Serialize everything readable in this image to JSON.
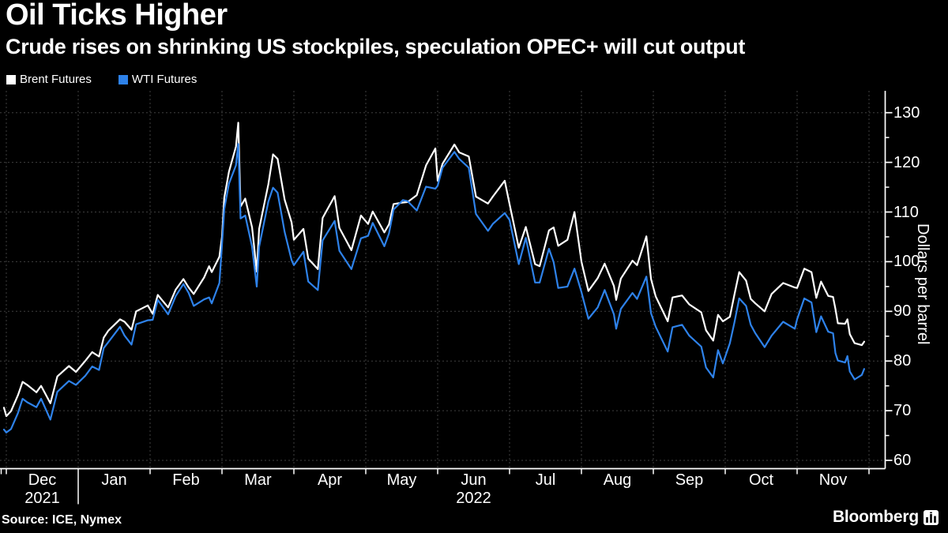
{
  "header": {
    "title": "Oil Ticks Higher",
    "subtitle": "Crude rises on shrinking US stockpiles, speculation OPEC+ will cut output"
  },
  "footer": {
    "source": "Source: ICE, Nymex",
    "brand": "Bloomberg",
    "brand_icon": "mini-bar-chart-icon"
  },
  "colors": {
    "background": "#000000",
    "text": "#ffffff",
    "gridline": "#3f3f3f",
    "axis": "#ffffff",
    "brent": "#ffffff",
    "wti": "#2e82ea"
  },
  "chart_data": {
    "type": "line",
    "title": "Oil Ticks Higher",
    "subtitle": "Crude rises on shrinking US stockpiles, speculation OPEC+ will cut output",
    "ylabel": "Dollars per barrel",
    "x_unit": "months since 2021-12-01 (fractional)",
    "grid": "dashed",
    "legend_position": "top-left",
    "x": [
      -0.033,
      0.0,
      0.065,
      0.161,
      0.226,
      0.29,
      0.419,
      0.484,
      0.613,
      0.71,
      0.871,
      0.968,
      1.097,
      1.194,
      1.29,
      1.355,
      1.419,
      1.581,
      1.645,
      1.742,
      1.806,
      1.968,
      2.036,
      2.107,
      2.25,
      2.357,
      2.464,
      2.536,
      2.607,
      2.75,
      2.821,
      2.857,
      2.964,
      3.0,
      3.032,
      3.097,
      3.194,
      3.226,
      3.258,
      3.323,
      3.419,
      3.484,
      3.516,
      3.645,
      3.71,
      3.774,
      3.871,
      3.968,
      4.0,
      4.133,
      4.2,
      4.333,
      4.4,
      4.567,
      4.633,
      4.8,
      4.933,
      5.032,
      5.097,
      5.258,
      5.323,
      5.387,
      5.516,
      5.581,
      5.71,
      5.839,
      5.968,
      6.0,
      6.067,
      6.233,
      6.3,
      6.433,
      6.533,
      6.7,
      6.767,
      6.933,
      7.0,
      7.129,
      7.226,
      7.355,
      7.419,
      7.548,
      7.613,
      7.677,
      7.806,
      7.903,
      8.0,
      8.097,
      8.226,
      8.323,
      8.452,
      8.484,
      8.548,
      8.71,
      8.774,
      8.903,
      8.968,
      9.033,
      9.2,
      9.267,
      9.4,
      9.5,
      9.667,
      9.733,
      9.833,
      9.9,
      9.967,
      10.065,
      10.129,
      10.194,
      10.29,
      10.355,
      10.419,
      10.548,
      10.645,
      10.806,
      10.968,
      11.0,
      11.1,
      11.2,
      11.267,
      11.333,
      11.433,
      11.5,
      11.533,
      11.567,
      11.667,
      11.7,
      11.733,
      11.8,
      11.9,
      11.933
    ],
    "series": [
      {
        "name": "Brent Futures",
        "color": "#ffffff",
        "values": [
          70.6,
          68.9,
          69.9,
          73.1,
          75.8,
          75.2,
          73.7,
          75.0,
          71.5,
          76.9,
          79.0,
          77.8,
          80.0,
          81.8,
          80.9,
          84.7,
          86.1,
          88.4,
          87.9,
          86.3,
          90.0,
          91.2,
          89.5,
          93.3,
          90.8,
          94.4,
          96.5,
          94.8,
          93.5,
          96.8,
          99.1,
          97.9,
          101.0,
          105.0,
          112.9,
          118.1,
          123.2,
          128.0,
          111.1,
          112.7,
          106.9,
          98.0,
          106.6,
          115.6,
          121.6,
          120.7,
          112.5,
          107.9,
          104.4,
          106.6,
          100.6,
          98.5,
          108.8,
          113.2,
          106.8,
          102.3,
          109.3,
          107.6,
          110.1,
          105.9,
          107.5,
          111.6,
          111.9,
          112.0,
          113.4,
          119.4,
          122.8,
          116.3,
          119.7,
          123.6,
          122.0,
          121.2,
          113.1,
          111.7,
          113.1,
          116.3,
          111.6,
          102.8,
          107.0,
          99.5,
          99.1,
          106.3,
          106.9,
          103.2,
          104.4,
          110.0,
          100.0,
          94.1,
          96.7,
          99.6,
          95.1,
          92.3,
          96.6,
          100.2,
          99.3,
          105.1,
          96.5,
          93.0,
          88.0,
          92.8,
          93.2,
          91.4,
          89.8,
          86.2,
          84.1,
          89.3,
          88.0,
          88.9,
          93.4,
          97.9,
          96.2,
          92.5,
          91.6,
          90.0,
          93.5,
          95.7,
          94.8,
          94.7,
          98.6,
          97.9,
          92.7,
          96.0,
          93.1,
          92.9,
          90.5,
          87.6,
          87.5,
          88.4,
          85.4,
          83.6,
          83.2,
          83.9
        ]
      },
      {
        "name": "WTI Futures",
        "color": "#2e82ea",
        "values": [
          66.2,
          65.6,
          66.3,
          69.5,
          72.4,
          71.7,
          70.7,
          72.4,
          68.2,
          73.8,
          76.0,
          75.2,
          77.0,
          78.9,
          78.2,
          82.6,
          83.8,
          86.9,
          85.1,
          83.3,
          87.4,
          88.2,
          88.3,
          92.3,
          89.4,
          93.1,
          95.5,
          93.7,
          91.1,
          92.4,
          92.8,
          91.6,
          95.7,
          103.4,
          110.6,
          115.7,
          119.4,
          123.7,
          108.7,
          109.3,
          103.0,
          95.0,
          103.0,
          112.1,
          114.9,
          113.9,
          106.0,
          100.3,
          99.3,
          102.0,
          96.0,
          94.3,
          104.3,
          108.2,
          102.2,
          98.5,
          104.7,
          105.2,
          107.8,
          103.1,
          105.7,
          110.5,
          112.4,
          112.2,
          110.3,
          115.1,
          114.7,
          115.3,
          118.9,
          122.1,
          120.7,
          118.9,
          109.6,
          106.2,
          107.6,
          109.8,
          108.4,
          99.5,
          104.8,
          95.8,
          95.8,
          102.6,
          99.9,
          94.7,
          95.0,
          98.6,
          93.9,
          88.5,
          90.8,
          94.3,
          89.4,
          86.5,
          90.5,
          93.7,
          92.5,
          97.0,
          89.6,
          86.9,
          81.9,
          86.8,
          87.3,
          85.1,
          82.9,
          78.7,
          76.7,
          82.2,
          79.5,
          83.6,
          87.8,
          92.6,
          91.1,
          87.3,
          85.6,
          82.8,
          85.1,
          87.9,
          86.5,
          88.4,
          92.6,
          91.8,
          85.8,
          89.0,
          85.9,
          85.6,
          81.6,
          80.1,
          79.7,
          81.0,
          77.9,
          76.3,
          77.2,
          78.4
        ]
      }
    ],
    "x_axis": {
      "months": [
        "Dec",
        "Jan",
        "Feb",
        "Mar",
        "Apr",
        "May",
        "Jun",
        "Jul",
        "Aug",
        "Sep",
        "Oct",
        "Nov"
      ],
      "years": [
        {
          "label": "2021",
          "month_index": 0
        },
        {
          "label": "2022",
          "month_index": 6
        }
      ],
      "year_divider_boundary": 1,
      "n_boundaries": 13
    },
    "y_axis": {
      "ticks": [
        60,
        70,
        80,
        90,
        100,
        110,
        120,
        130
      ],
      "minor_ticks": [
        65,
        75,
        85,
        95,
        105,
        115,
        125
      ],
      "range": [
        60,
        130
      ]
    }
  }
}
